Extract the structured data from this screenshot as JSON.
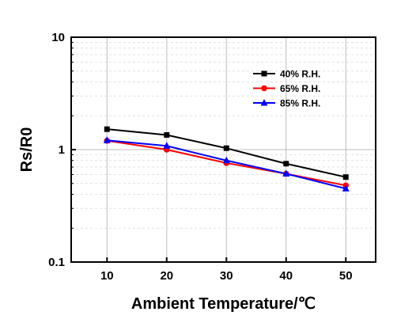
{
  "chart_data": {
    "type": "line",
    "title": "",
    "xlabel": "Ambient Temperature/℃",
    "ylabel": "Rs/R0",
    "x": [
      10,
      20,
      30,
      40,
      50
    ],
    "x_ticks": [
      "10",
      "20",
      "30",
      "40",
      "50"
    ],
    "xlim": [
      4,
      55
    ],
    "y_scale": "log",
    "ylim": [
      0.1,
      10
    ],
    "y_ticks": [
      "0.1",
      "1",
      "10"
    ],
    "grid": true,
    "legend_position": "top-right",
    "series": [
      {
        "name": "40% R.H.",
        "color": "#000000",
        "marker": "square",
        "values": [
          1.52,
          1.35,
          1.03,
          0.75,
          0.57
        ]
      },
      {
        "name": "65% R.H.",
        "color": "#ff0000",
        "marker": "circle",
        "values": [
          1.2,
          1.0,
          0.76,
          0.61,
          0.48
        ]
      },
      {
        "name": "85% R.H.",
        "color": "#0000ff",
        "marker": "triangle",
        "values": [
          1.21,
          1.08,
          0.8,
          0.61,
          0.45
        ]
      }
    ]
  }
}
